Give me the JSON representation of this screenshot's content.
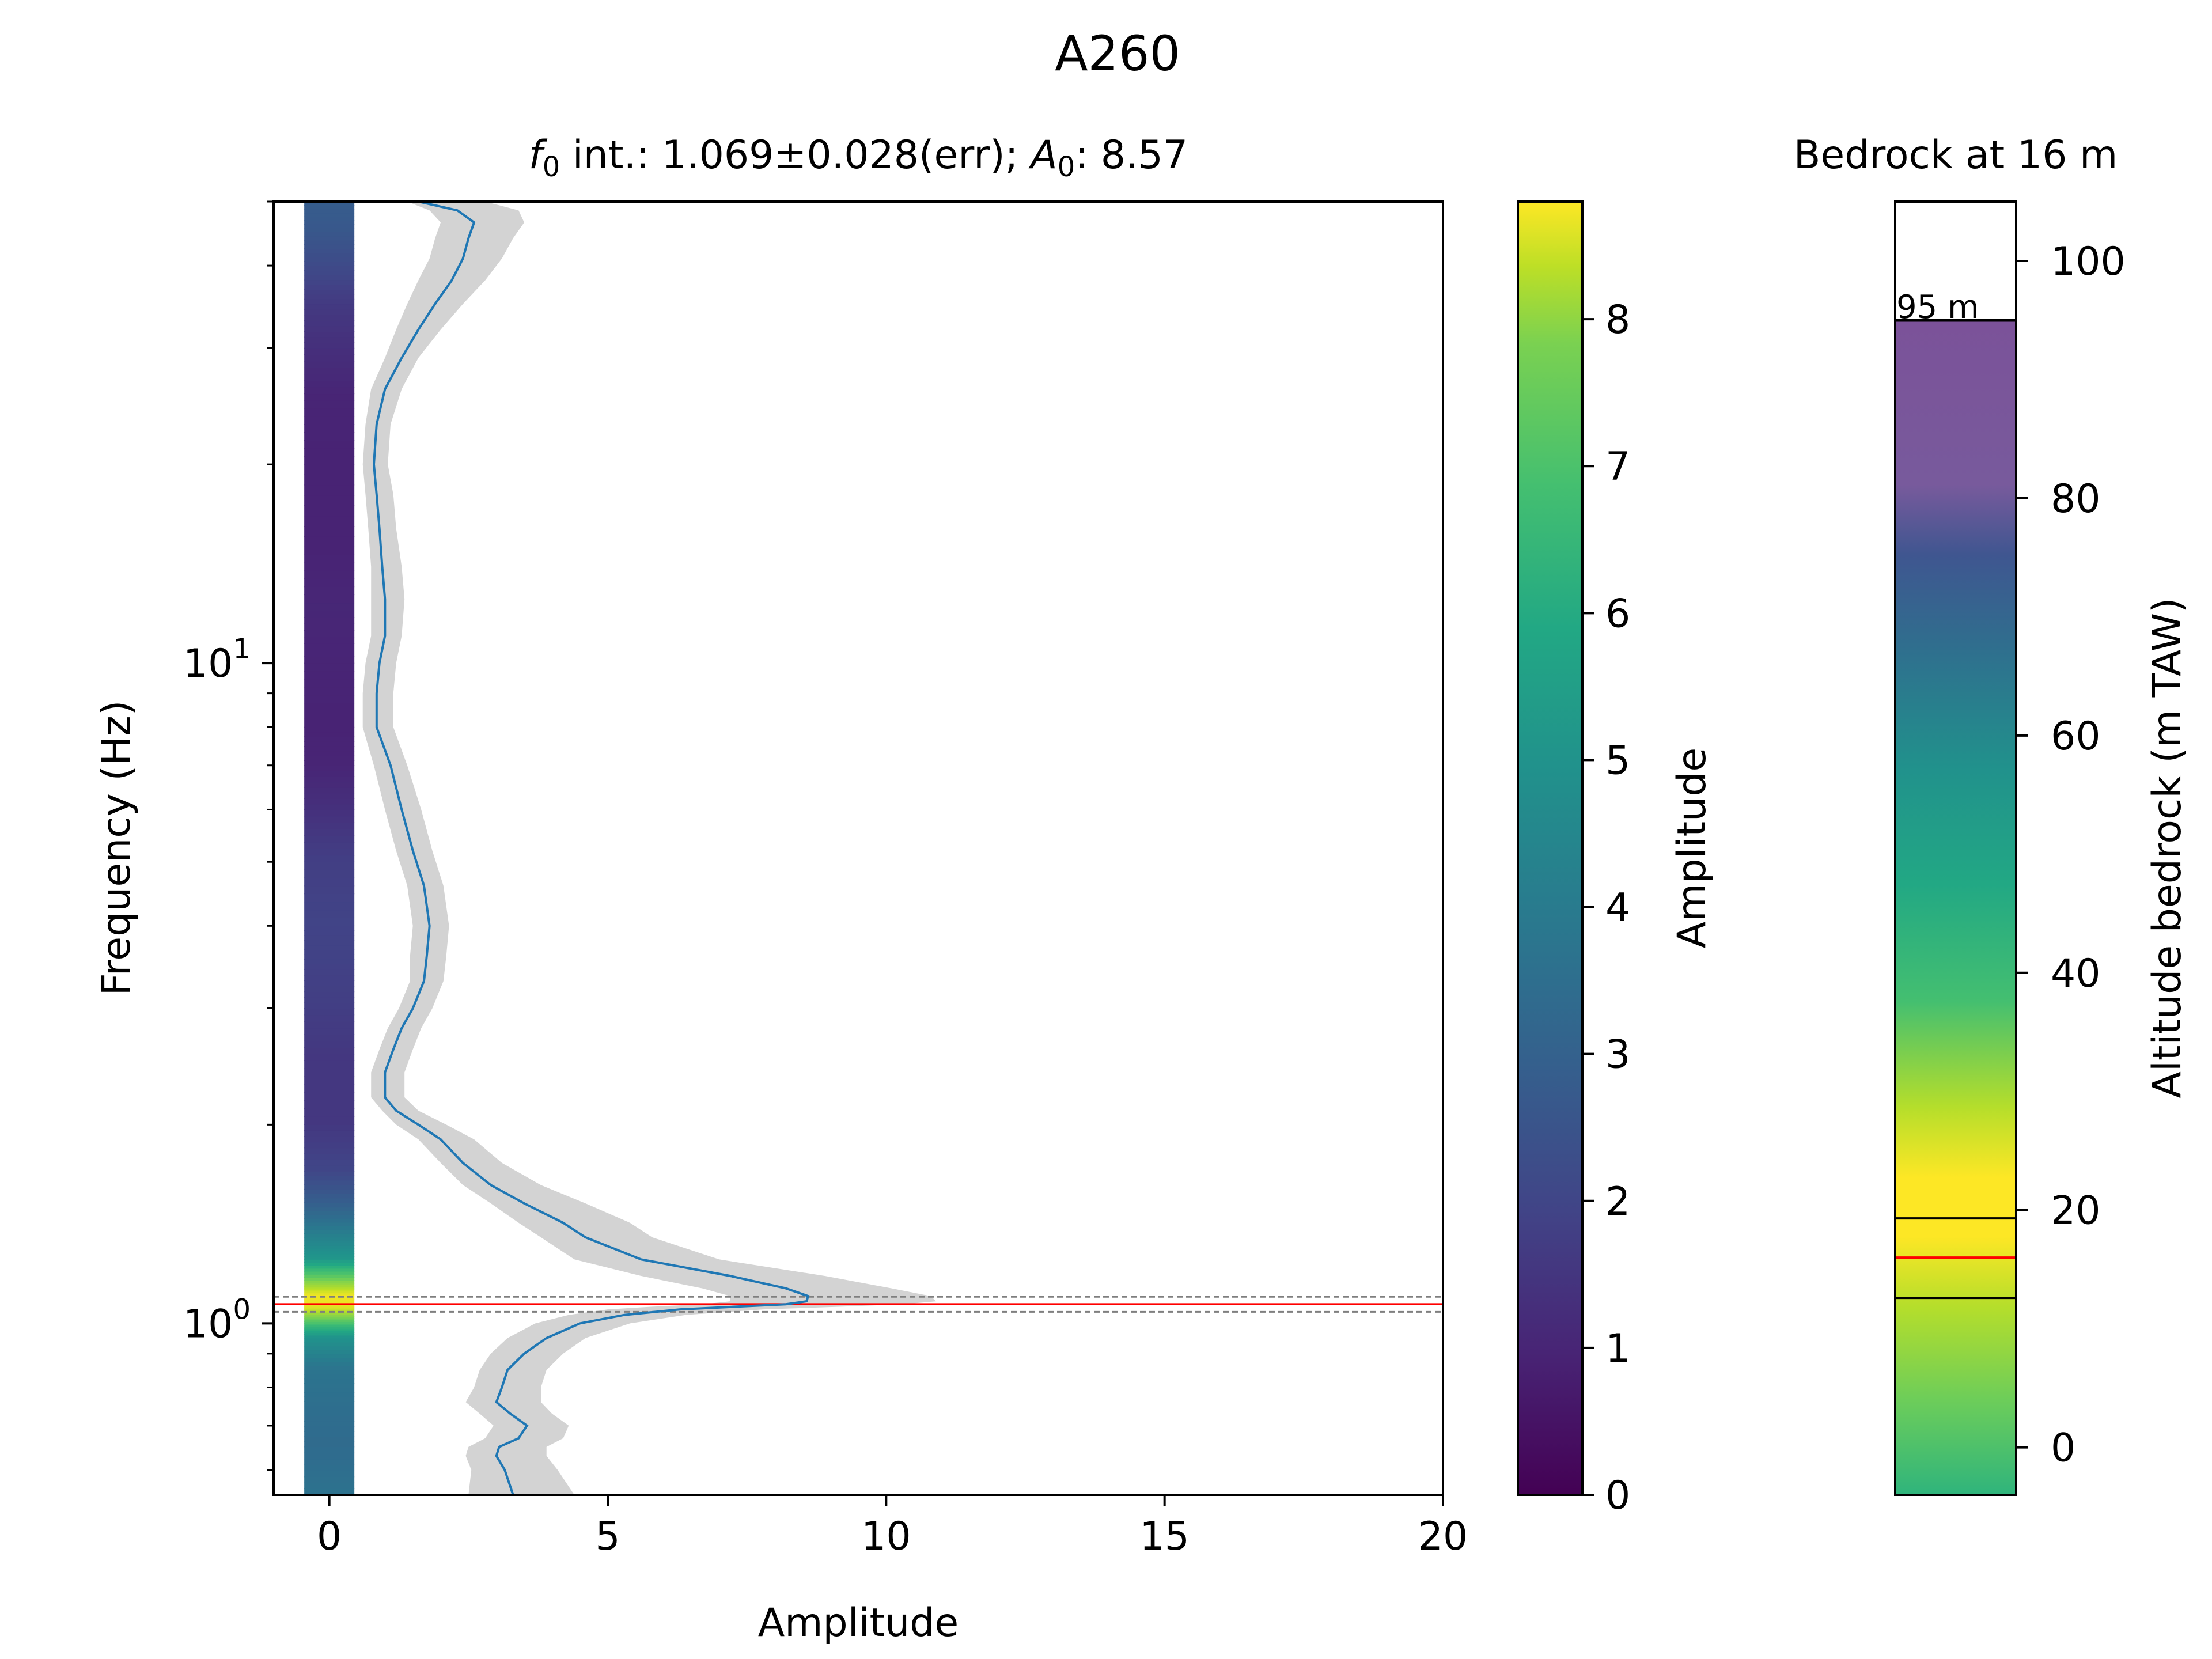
{
  "figure": {
    "title": "A260"
  },
  "chart_data": [
    {
      "type": "line",
      "title_parts": {
        "f_symbol": "f",
        "f_sub": "0",
        "f_text": " int.: 1.069±0.028(err); ",
        "a_symbol": "A",
        "a_sub": "0",
        "a_text": ": 8.57"
      },
      "xlabel": "Amplitude",
      "ylabel": "Frequency (Hz)",
      "xlim": [
        -1,
        20
      ],
      "ylim": [
        0.55,
        50
      ],
      "yscale": "log",
      "x_ticks": [
        "0",
        "5",
        "10",
        "15",
        "20"
      ],
      "y_tick_labels": [
        {
          "base": "10",
          "exp": "0"
        },
        {
          "base": "10",
          "exp": "1"
        }
      ],
      "f0": 1.069,
      "f0_err": 0.028,
      "A0": 8.57,
      "colors": {
        "curve": "#1f77b4",
        "band": "#d3d3d3",
        "f0_line": "#ff0000",
        "err_line": "#7f7f7f"
      },
      "series": [
        {
          "x": [
            3.3,
            3.15,
            3.0,
            3.05,
            3.4,
            3.55,
            3.25,
            3.0,
            3.1,
            3.2,
            3.5,
            3.9,
            4.5,
            5.3,
            6.3,
            7.3,
            8.2,
            8.57,
            8.6,
            8.2,
            7.2,
            5.6,
            4.6,
            4.2,
            3.5,
            2.9,
            2.4,
            2.0,
            1.6,
            1.2,
            1.0,
            1.0,
            1.15,
            1.3,
            1.5,
            1.7,
            1.75,
            1.8,
            1.7,
            1.5,
            1.3,
            1.1,
            0.85,
            0.85,
            0.9,
            1.0,
            1.0,
            0.95,
            0.9,
            0.85,
            0.8,
            0.85,
            1.0,
            1.3,
            1.6,
            1.9,
            2.2,
            2.4,
            2.5,
            2.6,
            2.3,
            1.6
          ],
          "y": [
            0.55,
            0.6,
            0.63,
            0.65,
            0.67,
            0.7,
            0.73,
            0.76,
            0.8,
            0.85,
            0.9,
            0.95,
            1.0,
            1.03,
            1.05,
            1.06,
            1.069,
            1.08,
            1.1,
            1.13,
            1.18,
            1.25,
            1.35,
            1.42,
            1.52,
            1.62,
            1.75,
            1.9,
            2.0,
            2.1,
            2.2,
            2.4,
            2.6,
            2.8,
            3.0,
            3.3,
            3.6,
            4.0,
            4.6,
            5.2,
            6.0,
            7.0,
            8.0,
            9.0,
            10.0,
            11.0,
            12.5,
            14.0,
            16.0,
            18.0,
            20.0,
            23.0,
            26.0,
            29.0,
            32.0,
            35.0,
            38.0,
            41.0,
            44.0,
            46.5,
            48.5,
            50.0
          ],
          "lower": [
            2.5,
            2.55,
            2.45,
            2.5,
            2.8,
            2.95,
            2.7,
            2.45,
            2.6,
            2.7,
            2.9,
            3.2,
            3.7,
            4.3,
            5.0,
            5.8,
            6.7,
            7.2,
            7.2,
            6.7,
            5.6,
            4.4,
            3.8,
            3.4,
            2.9,
            2.4,
            2.0,
            1.6,
            1.2,
            0.95,
            0.75,
            0.75,
            0.9,
            1.05,
            1.25,
            1.45,
            1.45,
            1.5,
            1.4,
            1.2,
            1.0,
            0.8,
            0.6,
            0.6,
            0.65,
            0.75,
            0.75,
            0.75,
            0.7,
            0.65,
            0.6,
            0.65,
            0.75,
            1.0,
            1.2,
            1.4,
            1.6,
            1.8,
            1.9,
            2.0,
            1.8,
            1.4
          ],
          "upper": [
            4.4,
            4.1,
            3.9,
            3.9,
            4.2,
            4.3,
            4.0,
            3.8,
            3.8,
            3.9,
            4.2,
            4.6,
            5.4,
            6.4,
            7.8,
            9.2,
            10.3,
            10.9,
            10.8,
            10.1,
            8.9,
            7.0,
            5.8,
            5.4,
            4.6,
            3.8,
            3.1,
            2.6,
            2.1,
            1.6,
            1.35,
            1.35,
            1.5,
            1.65,
            1.85,
            2.05,
            2.1,
            2.15,
            2.05,
            1.85,
            1.65,
            1.4,
            1.15,
            1.15,
            1.2,
            1.3,
            1.35,
            1.3,
            1.2,
            1.15,
            1.05,
            1.1,
            1.3,
            1.6,
            2.0,
            2.4,
            2.8,
            3.1,
            3.3,
            3.5,
            3.4,
            2.8
          ]
        }
      ],
      "amplitude_strip": {
        "colormap": "viridis",
        "f": [
          0.55,
          0.65,
          0.75,
          0.85,
          0.95,
          1.0,
          1.05,
          1.069,
          1.1,
          1.15,
          1.25,
          1.35,
          1.5,
          1.7,
          2.0,
          2.5,
          3.0,
          3.5,
          4.0,
          5.0,
          6.0,
          7.0,
          8.0,
          10.0,
          12.0,
          15.0,
          20.0,
          25.0,
          30.0,
          35.0,
          40.0,
          45.0,
          50.0
        ],
        "amplitude": [
          3.3,
          3.05,
          3.2,
          3.4,
          4.5,
          6.3,
          8.2,
          8.57,
          8.6,
          7.2,
          4.6,
          3.8,
          2.7,
          1.8,
          1.4,
          1.4,
          1.6,
          1.7,
          1.75,
          1.6,
          1.2,
          0.9,
          0.85,
          0.9,
          0.95,
          0.85,
          0.85,
          0.9,
          1.2,
          1.5,
          2.0,
          2.4,
          2.6
        ]
      }
    },
    {
      "type": "heatmap",
      "role": "colorbar",
      "label": "Amplitude",
      "colormap": "viridis",
      "range": [
        0,
        8.8
      ],
      "ticks": [
        "0",
        "1",
        "2",
        "3",
        "4",
        "5",
        "6",
        "7",
        "8"
      ]
    },
    {
      "type": "bar",
      "title": "Bedrock at 16 m",
      "ylabel": "Altitude bedrock (m TAW)",
      "ylim": [
        -4,
        105
      ],
      "y_ticks": [
        "0",
        "20",
        "40",
        "60",
        "80",
        "100"
      ],
      "surface_altitude": 95,
      "surface_label": "95 m",
      "bedrock_altitude": 16,
      "bedrock_bounds": [
        12.6,
        19.3
      ],
      "colormap_range": [
        -25,
        105
      ],
      "colors": {
        "bedrock_line": "#ff0000",
        "bounds": "#000000"
      }
    }
  ]
}
